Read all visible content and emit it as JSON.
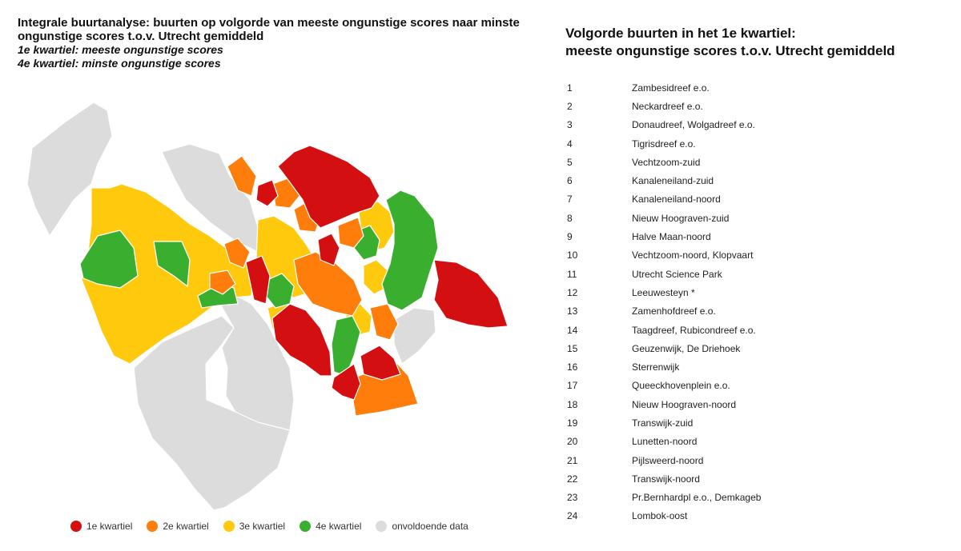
{
  "map": {
    "title": "Integrale buurtanalyse: buurten op volgorde van meeste ongunstige scores naar minste ongunstige scores t.o.v. Utrecht gemiddeld",
    "subtitle_1": "1e kwartiel: meeste ongunstige scores",
    "subtitle_2": "4e kwartiel: minste ongunstige scores",
    "colors": {
      "q1": "#d40f11",
      "q2": "#ff7d0a",
      "q3": "#ffc90e",
      "q4": "#3aae2e",
      "nodata": "#dcdcdc"
    }
  },
  "legend": {
    "items": [
      {
        "label": "1e kwartiel",
        "color": "#d40f11"
      },
      {
        "label": "2e kwartiel",
        "color": "#ff7d0a"
      },
      {
        "label": "3e kwartiel",
        "color": "#ffc90e"
      },
      {
        "label": "4e kwartiel",
        "color": "#3aae2e"
      },
      {
        "label": "onvoldoende data",
        "color": "#dcdcdc"
      }
    ]
  },
  "ranking": {
    "title_line1": "Volgorde buurten in het 1e kwartiel:",
    "title_line2": "meeste ongunstige scores t.o.v. Utrecht gemiddeld",
    "items": [
      {
        "rank": "1",
        "name": "Zambesidreef e.o."
      },
      {
        "rank": "2",
        "name": "Neckardreef e.o."
      },
      {
        "rank": "3",
        "name": "Donaudreef, Wolgadreef e.o."
      },
      {
        "rank": "4",
        "name": "Tigrisdreef e.o."
      },
      {
        "rank": "5",
        "name": "Vechtzoom-zuid"
      },
      {
        "rank": "6",
        "name": "Kanaleneiland-zuid"
      },
      {
        "rank": "7",
        "name": "Kanaleneiland-noord"
      },
      {
        "rank": "8",
        "name": "Nieuw Hoograven-zuid"
      },
      {
        "rank": "9",
        "name": "Halve Maan-noord"
      },
      {
        "rank": "10",
        "name": "Vechtzoom-noord, Klopvaart"
      },
      {
        "rank": "11",
        "name": "Utrecht Science Park"
      },
      {
        "rank": "12",
        "name": "Leeuwesteyn *"
      },
      {
        "rank": "13",
        "name": "Zamenhofdreef e.o."
      },
      {
        "rank": "14",
        "name": "Taagdreef, Rubicondreef e.o."
      },
      {
        "rank": "15",
        "name": "Geuzenwijk, De Driehoek"
      },
      {
        "rank": "16",
        "name": "Sterrenwijk"
      },
      {
        "rank": "17",
        "name": "Queeckhovenplein e.o."
      },
      {
        "rank": "18",
        "name": "Nieuw Hoograven-noord"
      },
      {
        "rank": "19",
        "name": "Transwijk-zuid"
      },
      {
        "rank": "20",
        "name": "Lunetten-noord"
      },
      {
        "rank": "21",
        "name": "Pijlsweerd-noord"
      },
      {
        "rank": "22",
        "name": "Transwijk-noord"
      },
      {
        "rank": "23",
        "name": "Pr.Bernhardpl e.o., Demkageb"
      },
      {
        "rank": "24",
        "name": "Lombok-oost"
      }
    ]
  }
}
